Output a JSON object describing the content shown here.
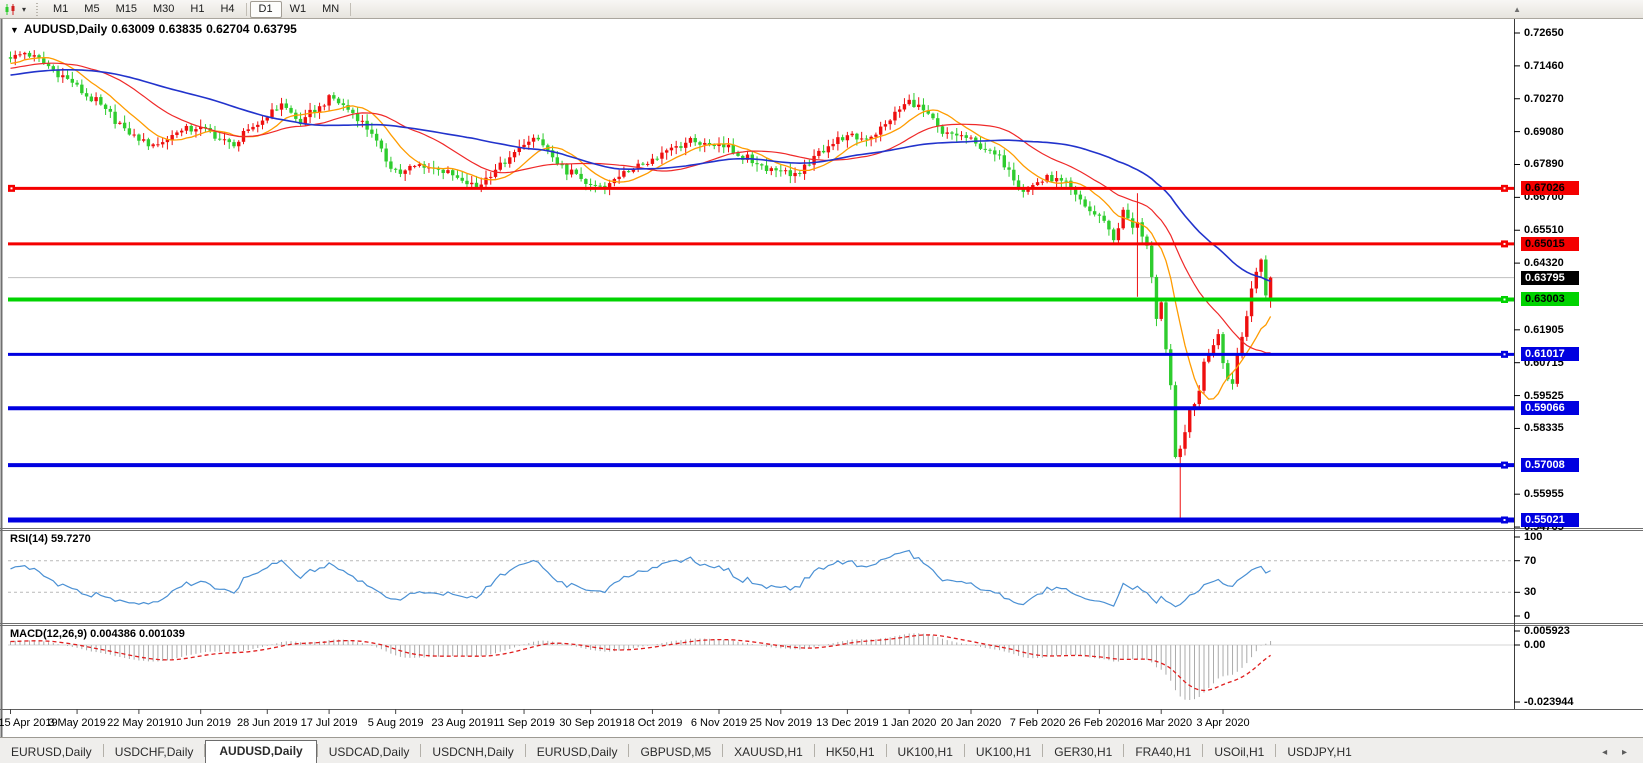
{
  "toolbar": {
    "timeframes": [
      {
        "label": "M1",
        "selected": false
      },
      {
        "label": "M5",
        "selected": false
      },
      {
        "label": "M15",
        "selected": false
      },
      {
        "label": "M30",
        "selected": false
      },
      {
        "label": "H1",
        "selected": false
      },
      {
        "label": "H4",
        "selected": false
      },
      {
        "label": "D1",
        "selected": true
      },
      {
        "label": "W1",
        "selected": false
      },
      {
        "label": "MN",
        "selected": false
      }
    ],
    "separators_after": [
      "H4",
      "MN"
    ],
    "chart_icon": "candlestick-chart-icon",
    "overflow_icon": "scroll-up-icon"
  },
  "title": {
    "symbol_period": "AUDUSD,Daily",
    "open": "0.63009",
    "high": "0.63835",
    "low": "0.62704",
    "close": "0.63795"
  },
  "price_axis": {
    "ticks": [
      "0.72650",
      "0.71460",
      "0.70270",
      "0.69080",
      "0.67890",
      "0.66700",
      "0.65510",
      "0.64320",
      "0.61905",
      "0.60715",
      "0.59525",
      "0.58335",
      "0.55955",
      "0.54765"
    ],
    "current_price": {
      "value": "0.63795",
      "bg": "#000000",
      "fg": "#ffffff"
    }
  },
  "hlines": [
    {
      "price": 0.67026,
      "label": "0.67026",
      "color": "#f40000",
      "text": "#000000",
      "thickness": 3,
      "left_handle": true,
      "right_handle": true
    },
    {
      "price": 0.65015,
      "label": "0.65015",
      "color": "#f40000",
      "text": "#000000",
      "thickness": 3,
      "left_handle": false,
      "right_handle": true
    },
    {
      "price": 0.63003,
      "label": "0.63003",
      "color": "#00d300",
      "text": "#000000",
      "thickness": 4,
      "left_handle": false,
      "right_handle": true
    },
    {
      "price": 0.61017,
      "label": "0.61017",
      "color": "#0000e0",
      "text": "#ffffff",
      "thickness": 3,
      "left_handle": false,
      "right_handle": true
    },
    {
      "price": 0.59066,
      "label": "0.59066",
      "color": "#0000e0",
      "text": "#ffffff",
      "thickness": 4,
      "left_handle": false,
      "right_handle": false
    },
    {
      "price": 0.57008,
      "label": "0.57008",
      "color": "#0000e0",
      "text": "#ffffff",
      "thickness": 4,
      "left_handle": false,
      "right_handle": true
    },
    {
      "price": 0.55021,
      "label": "0.55021",
      "color": "#0000e0",
      "text": "#ffffff",
      "thickness": 5,
      "left_handle": false,
      "right_handle": true
    }
  ],
  "current_price_line": {
    "price": 0.63795,
    "color": "#bfbfbf"
  },
  "date_axis": {
    "labels": [
      {
        "text": "15 Apr 2019",
        "bar": 0
      },
      {
        "text": "3 May 2019",
        "bar": 14
      },
      {
        "text": "22 May 2019",
        "bar": 27
      },
      {
        "text": "10 Jun 2019",
        "bar": 40
      },
      {
        "text": "28 Jun 2019",
        "bar": 54
      },
      {
        "text": "17 Jul 2019",
        "bar": 67
      },
      {
        "text": "5 Aug 2019",
        "bar": 81
      },
      {
        "text": "23 Aug 2019",
        "bar": 95
      },
      {
        "text": "11 Sep 2019",
        "bar": 108
      },
      {
        "text": "30 Sep 2019",
        "bar": 122
      },
      {
        "text": "18 Oct 2019",
        "bar": 135
      },
      {
        "text": "6 Nov 2019",
        "bar": 149
      },
      {
        "text": "25 Nov 2019",
        "bar": 162
      },
      {
        "text": "13 Dec 2019",
        "bar": 176
      },
      {
        "text": "1 Jan 2020",
        "bar": 189
      },
      {
        "text": "20 Jan 2020",
        "bar": 202
      },
      {
        "text": "7 Feb 2020",
        "bar": 216
      },
      {
        "text": "26 Feb 2020",
        "bar": 229
      },
      {
        "text": "16 Mar 2020",
        "bar": 242
      },
      {
        "text": "3 Apr 2020",
        "bar": 255
      }
    ]
  },
  "rsi": {
    "label": "RSI(14) 59.7270",
    "name": "RSI",
    "period": 14,
    "value": "59.7270",
    "axis_labels": [
      "100",
      "70",
      "30",
      "0"
    ],
    "levels": [
      100,
      70,
      30,
      0
    ],
    "dashed_levels": [
      70,
      30
    ],
    "line_color": "#4a90d4"
  },
  "macd": {
    "label": "MACD(12,26,9) 0.004386 0.001039",
    "params": "12,26,9",
    "main_value": "0.004386",
    "signal_value": "0.001039",
    "axis_labels": [
      "0.005923",
      "0.00",
      "-0.023944"
    ],
    "scale_max": 0.005923,
    "zero": 0.0,
    "scale_min": -0.023944,
    "histogram_color": "#ababab",
    "signal_color": "#e01f1f"
  },
  "tabs": {
    "items": [
      {
        "label": "EURUSD,Daily",
        "active": false
      },
      {
        "label": "USDCHF,Daily",
        "active": false
      },
      {
        "label": "AUDUSD,Daily",
        "active": true
      },
      {
        "label": "USDCAD,Daily",
        "active": false
      },
      {
        "label": "USDCNH,Daily",
        "active": false
      },
      {
        "label": "EURUSD,Daily",
        "active": false
      },
      {
        "label": "GBPUSD,M5",
        "active": false
      },
      {
        "label": "XAUUSD,H1",
        "active": false
      },
      {
        "label": "HK50,H1",
        "active": false
      },
      {
        "label": "UK100,H1",
        "active": false
      },
      {
        "label": "UK100,H1",
        "active": false
      },
      {
        "label": "GER30,H1",
        "active": false
      },
      {
        "label": "FRA40,H1",
        "active": false
      },
      {
        "label": "USOil,H1",
        "active": false
      },
      {
        "label": "USDJPY,H1",
        "active": false
      }
    ],
    "nav_arrows": "◂ ▸"
  },
  "chart_data": {
    "type": "candlestick",
    "symbol": "AUDUSD",
    "period": "Daily",
    "title": "AUDUSD,Daily",
    "last_bar_ohlc": {
      "open": 0.63009,
      "high": 0.63835,
      "low": 0.62704,
      "close": 0.63795
    },
    "price_axis_range": [
      0.54765,
      0.7265
    ],
    "bars_visible": 266,
    "up_color": "#ee0f0f",
    "down_color": "#2ecc2e",
    "close_anchors": [
      [
        0,
        0.7172
      ],
      [
        3,
        0.7193
      ],
      [
        8,
        0.7145
      ],
      [
        13,
        0.7085
      ],
      [
        16,
        0.7035
      ],
      [
        20,
        0.699
      ],
      [
        24,
        0.692
      ],
      [
        27,
        0.6875
      ],
      [
        31,
        0.6862
      ],
      [
        35,
        0.6905
      ],
      [
        40,
        0.6925
      ],
      [
        44,
        0.688
      ],
      [
        47,
        0.6855
      ],
      [
        51,
        0.6925
      ],
      [
        54,
        0.696
      ],
      [
        57,
        0.701
      ],
      [
        61,
        0.6935
      ],
      [
        65,
        0.7
      ],
      [
        67,
        0.704
      ],
      [
        72,
        0.6975
      ],
      [
        76,
        0.69
      ],
      [
        79,
        0.68
      ],
      [
        82,
        0.6755
      ],
      [
        86,
        0.679
      ],
      [
        90,
        0.677
      ],
      [
        95,
        0.673
      ],
      [
        98,
        0.6705
      ],
      [
        102,
        0.677
      ],
      [
        105,
        0.6815
      ],
      [
        108,
        0.686
      ],
      [
        111,
        0.688
      ],
      [
        115,
        0.679
      ],
      [
        119,
        0.6755
      ],
      [
        122,
        0.6715
      ],
      [
        125,
        0.67
      ],
      [
        129,
        0.6765
      ],
      [
        133,
        0.679
      ],
      [
        135,
        0.681
      ],
      [
        139,
        0.685
      ],
      [
        143,
        0.6885
      ],
      [
        147,
        0.686
      ],
      [
        149,
        0.6865
      ],
      [
        153,
        0.682
      ],
      [
        157,
        0.679
      ],
      [
        162,
        0.6765
      ],
      [
        166,
        0.6755
      ],
      [
        169,
        0.682
      ],
      [
        172,
        0.6855
      ],
      [
        176,
        0.6895
      ],
      [
        180,
        0.688
      ],
      [
        184,
        0.6935
      ],
      [
        189,
        0.7023
      ],
      [
        192,
        0.6985
      ],
      [
        196,
        0.69
      ],
      [
        200,
        0.6895
      ],
      [
        203,
        0.6865
      ],
      [
        206,
        0.684
      ],
      [
        210,
        0.677
      ],
      [
        213,
        0.669
      ],
      [
        216,
        0.6725
      ],
      [
        220,
        0.674
      ],
      [
        224,
        0.668
      ],
      [
        227,
        0.662
      ],
      [
        230,
        0.6585
      ],
      [
        232,
        0.6515
      ],
      [
        234,
        0.6625
      ],
      [
        236,
        0.656
      ],
      [
        237,
        0.658
      ],
      [
        239,
        0.6495
      ],
      [
        241,
        0.623
      ],
      [
        242,
        0.629
      ],
      [
        243,
        0.612
      ],
      [
        244,
        0.599
      ],
      [
        245,
        0.573
      ],
      [
        246,
        0.576
      ],
      [
        247,
        0.582
      ],
      [
        248,
        0.59
      ],
      [
        250,
        0.597
      ],
      [
        251,
        0.6075
      ],
      [
        253,
        0.6135
      ],
      [
        254,
        0.6175
      ],
      [
        255,
        0.607
      ],
      [
        257,
        0.5995
      ],
      [
        259,
        0.6165
      ],
      [
        261,
        0.634
      ],
      [
        263,
        0.6445
      ],
      [
        264,
        0.6315
      ],
      [
        265,
        0.63795
      ]
    ],
    "special_bars": [
      {
        "index": 237,
        "high": 0.6685,
        "low": 0.631
      },
      {
        "index": 246,
        "low": 0.5506
      },
      {
        "index": 265,
        "open": 0.63009,
        "high": 0.63835,
        "low": 0.62704,
        "close": 0.63795
      }
    ],
    "moving_averages": [
      {
        "type": "SMA",
        "period": 10,
        "color": "#ff9c00",
        "width": 1.3
      },
      {
        "type": "SMA",
        "period": 25,
        "color": "#ef2929",
        "width": 1.2
      },
      {
        "type": "SMA",
        "period": 50,
        "color": "#2233cc",
        "width": 1.6
      }
    ],
    "indicators": [
      {
        "name": "RSI",
        "period": 14,
        "current": 59.727,
        "levels": [
          70,
          30
        ],
        "range": [
          0,
          100
        ]
      },
      {
        "name": "MACD",
        "fast": 12,
        "slow": 26,
        "signal": 9,
        "current_main": 0.004386,
        "current_signal": 0.001039,
        "pane_max": 0.005923,
        "pane_min": -0.023944
      }
    ]
  }
}
